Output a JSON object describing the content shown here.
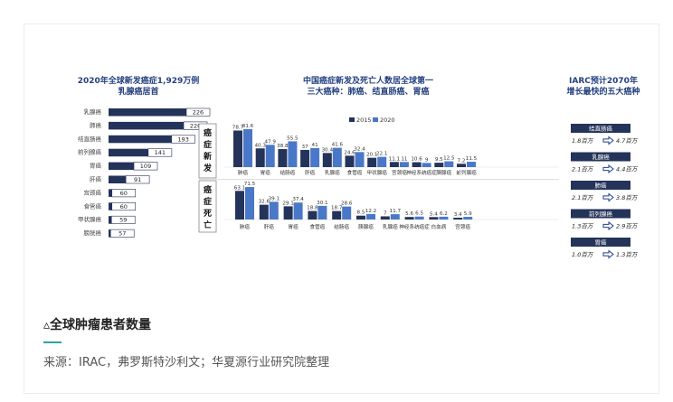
{
  "caption": "▵全球肿瘤患者数量",
  "source": "来源：IRAC，弗罗斯特沙利文；华夏源行业研究院整理",
  "colors": {
    "dark": "#243359",
    "light": "#4a78c8",
    "title": "#24407f",
    "arrow": "#1e3f86"
  },
  "chart_data": [
    {
      "type": "bar",
      "orientation": "horizontal",
      "title": [
        "2020年全球新发癌症1,929万例",
        "乳腺癌居首"
      ],
      "categories": [
        "乳腺癌",
        "肺癌",
        "结直肠癌",
        "前列腺癌",
        "胃癌",
        "肝癌",
        "宫颈癌",
        "食管癌",
        "甲状腺癌",
        "膀胱癌"
      ],
      "values": [
        226,
        220,
        193,
        141,
        109,
        91,
        60,
        60,
        59,
        57
      ]
    },
    {
      "type": "bar",
      "title": [
        "中国癌症新发及死亡人数居全球第一",
        "三大癌种：肺癌、结直肠癌、胃癌"
      ],
      "legend": [
        "2015",
        "2020"
      ],
      "panels": [
        {
          "label": "癌症新发",
          "categories": [
            "肺癌",
            "胃癌",
            "结肠癌",
            "肝癌",
            "乳腺癌",
            "食管癌",
            "甲状腺癌",
            "宫颈癌",
            "神经系统癌症",
            "胰腺癌",
            "前列腺癌"
          ],
          "series": [
            {
              "name": "2015",
              "values": [
                78.7,
                40.3,
                38.8,
                37,
                30.4,
                24.6,
                20.1,
                11.1,
                10.6,
                9.5,
                7.2
              ]
            },
            {
              "name": "2020",
              "values": [
                81.6,
                47.9,
                55.5,
                41,
                41.6,
                32.4,
                22.1,
                11,
                9,
                12.5,
                11.5
              ]
            }
          ]
        },
        {
          "label": "癌症死亡",
          "categories": [
            "肺癌",
            "肝癌",
            "胃癌",
            "食管癌",
            "结肠癌",
            "胰腺癌",
            "乳腺癌",
            "神经系统癌症",
            "白血病",
            "宫颈癌"
          ],
          "series": [
            {
              "name": "2015",
              "values": [
                63.1,
                32.6,
                29.1,
                18.8,
                18.7,
                8.5,
                7,
                5.6,
                5.4,
                3.4
              ]
            },
            {
              "name": "2020",
              "values": [
                71.5,
                39.1,
                37.4,
                30.1,
                28.6,
                12.2,
                11.7,
                6.5,
                6.2,
                5.9
              ]
            }
          ]
        }
      ]
    },
    {
      "type": "table",
      "title": [
        "IARC预计2070年",
        "增长最快的五大癌种"
      ],
      "rows": [
        {
          "name": "结直肠癌",
          "from": "1.8百万",
          "to": "4.7百万"
        },
        {
          "name": "乳腺癌",
          "from": "2.1百万",
          "to": "4.4百万"
        },
        {
          "name": "肺癌",
          "from": "2.1百万",
          "to": "3.8百万"
        },
        {
          "name": "前列腺癌",
          "from": "1.3百万",
          "to": "2.9百万"
        },
        {
          "name": "胃癌",
          "from": "1.0百万",
          "to": "1.3百万"
        }
      ]
    }
  ]
}
